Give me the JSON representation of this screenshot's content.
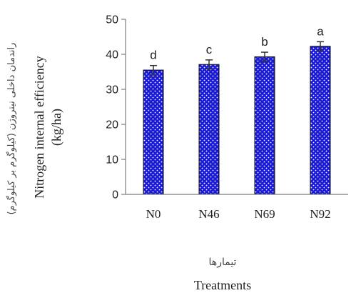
{
  "chart_data": {
    "type": "bar",
    "categories": [
      "N0",
      "N46",
      "N69",
      "N92"
    ],
    "values": [
      35.5,
      37.1,
      39.3,
      42.3
    ],
    "errors": [
      1.3,
      1.3,
      1.3,
      1.3
    ],
    "significance": [
      "d",
      "c",
      "b",
      "a"
    ],
    "ylim": [
      0,
      50
    ],
    "yticks": [
      "0",
      "10",
      "20",
      "30",
      "40",
      "50"
    ],
    "ylabel": "Nitrogen internal efficiency",
    "ylabel_unit": "(kg/ha)",
    "ylabel_fa": "(راندمان داخلی نیتروژن (کیلوگرم بر کیلوگرم",
    "xlabel": "Treatments",
    "xlabel_fa": "تیمارها",
    "grid": false,
    "bar_color": "#1a1ad6",
    "bar_pattern": "white-dots"
  }
}
